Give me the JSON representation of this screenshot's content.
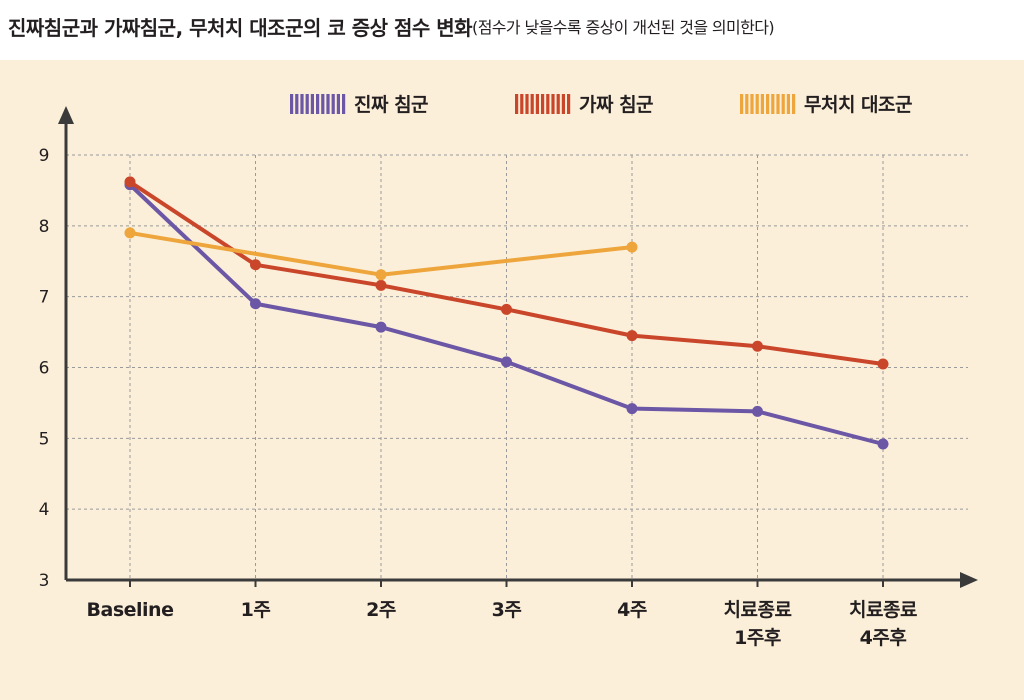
{
  "header": {
    "title": "진짜침군과 가짜침군, 무처치 대조군의 코 증상 점수 변화",
    "subtitle": "(점수가 낮을수록 증상이 개선된 것을 의미한다)"
  },
  "chart_data": {
    "type": "line",
    "title": "진짜침군과 가짜침군, 무처치 대조군의 코 증상 점수 변화",
    "subtitle": "(점수가 낮을수록 증상이 개선된 것을 의미한다)",
    "categories": [
      "Baseline",
      "1주",
      "2주",
      "3주",
      "4주",
      "치료종료\n1주후",
      "치료종료\n4주후"
    ],
    "ylim": [
      3,
      9
    ],
    "yticks": [
      3,
      4,
      5,
      6,
      7,
      8,
      9
    ],
    "grid": true,
    "legend_position": "top",
    "series": [
      {
        "name": "진짜 침군",
        "color": "#6b57a5",
        "values": [
          8.58,
          6.9,
          6.57,
          6.08,
          5.42,
          5.38,
          4.92
        ]
      },
      {
        "name": "가짜 침군",
        "color": "#c9462b",
        "values": [
          8.62,
          7.45,
          7.16,
          6.82,
          6.45,
          6.3,
          6.05
        ]
      },
      {
        "name": "무처치 대조군",
        "color": "#eda53c",
        "values": [
          7.9,
          null,
          7.31,
          null,
          7.7,
          null,
          null
        ]
      }
    ]
  },
  "colors": {
    "panel_background": "#fbefd9",
    "axis": "#3a3a3a",
    "grid": "#9a9a9a"
  }
}
